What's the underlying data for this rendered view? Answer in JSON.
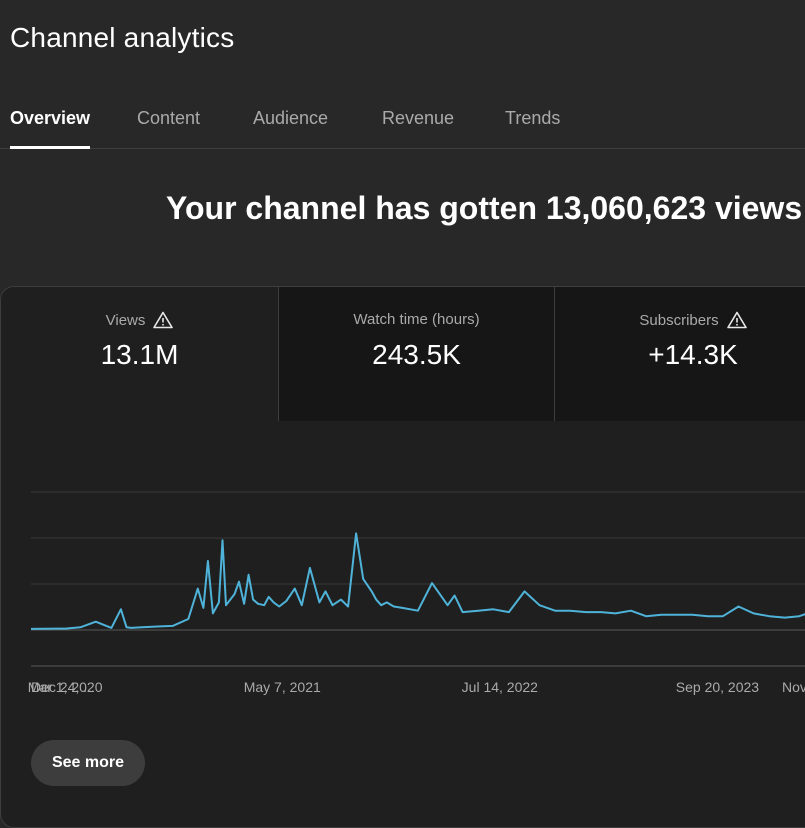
{
  "page": {
    "title": "Channel analytics"
  },
  "tabs": [
    {
      "label": "Overview",
      "active": true
    },
    {
      "label": "Content",
      "active": false
    },
    {
      "label": "Audience",
      "active": false
    },
    {
      "label": "Revenue",
      "active": false
    },
    {
      "label": "Trends",
      "active": false
    }
  ],
  "headline": "Your channel has gotten 13,060,623 views",
  "metrics": [
    {
      "label": "Views",
      "value": "13.1M",
      "icon": "warning-icon",
      "selected": true
    },
    {
      "label": "Watch time (hours)",
      "value": "243.5K",
      "icon": "",
      "selected": false
    },
    {
      "label": "Subscribers",
      "value": "+14.3K",
      "icon": "warning-icon",
      "selected": false
    }
  ],
  "actions": {
    "see_more": "See more"
  },
  "colors": {
    "line": "#4fb3d9",
    "background": "#282828",
    "card": "#1f1f1f"
  },
  "chart_data": {
    "type": "line",
    "series": [
      {
        "x": [
          "2019-12-24",
          "2020-01-20",
          "2020-02-15",
          "2020-03-01",
          "2020-04-01",
          "2020-05-01",
          "2020-06-01",
          "2020-06-20",
          "2020-07-01",
          "2020-07-10",
          "2020-08-01",
          "2020-09-01",
          "2020-10-01",
          "2020-11-01",
          "2020-11-20",
          "2020-12-01",
          "2020-12-10",
          "2020-12-20",
          "2021-01-01",
          "2021-01-08",
          "2021-01-15",
          "2021-02-01",
          "2021-02-10",
          "2021-02-20",
          "2021-03-01",
          "2021-03-10",
          "2021-03-20",
          "2021-04-01",
          "2021-04-10",
          "2021-04-20",
          "2021-05-01",
          "2021-05-15",
          "2021-06-01",
          "2021-06-15",
          "2021-07-01",
          "2021-07-20",
          "2021-08-01",
          "2021-08-15",
          "2021-09-01",
          "2021-09-15",
          "2021-10-01",
          "2021-10-15",
          "2021-11-01",
          "2021-11-10",
          "2021-11-20",
          "2021-12-01",
          "2021-12-15",
          "2022-01-01",
          "2022-02-01",
          "2022-03-01",
          "2022-04-01",
          "2022-04-15",
          "2022-05-01",
          "2022-06-01",
          "2022-07-01",
          "2022-08-01",
          "2022-09-01",
          "2022-10-01",
          "2022-11-01",
          "2022-12-01",
          "2023-01-01",
          "2023-02-01",
          "2023-03-01",
          "2023-04-01",
          "2023-05-01",
          "2023-06-01",
          "2023-07-01",
          "2023-08-01",
          "2023-09-01",
          "2023-10-01",
          "2023-11-01",
          "2023-12-01",
          "2024-01-01",
          "2024-02-01",
          "2024-03-01",
          "2024-04-01",
          "2024-05-01",
          "2024-06-01"
        ],
        "y": [
          0.8,
          0.9,
          1.0,
          1.0,
          2.0,
          6.0,
          1.5,
          15.0,
          2.0,
          1.5,
          2.0,
          2.5,
          3.0,
          8.0,
          30.0,
          16.0,
          50.0,
          12.0,
          20.0,
          65.0,
          18.0,
          26.0,
          35.0,
          19.0,
          40.0,
          22.0,
          19.0,
          18.0,
          24.0,
          20.0,
          17.0,
          21.0,
          30.0,
          18.0,
          45.0,
          20.0,
          28.0,
          18.0,
          22.0,
          17.0,
          70.0,
          37.0,
          28.0,
          22.0,
          18.0,
          20.0,
          17.0,
          16.0,
          14.0,
          34.0,
          18.0,
          25.0,
          13.0,
          14.0,
          15.0,
          13.0,
          28.0,
          18.0,
          14.0,
          14.0,
          13.0,
          13.0,
          12.0,
          14.0,
          10.0,
          11.0,
          11.0,
          11.0,
          10.0,
          10.0,
          17.0,
          12.0,
          10.0,
          9.0,
          10.0,
          14.0,
          10.0,
          9.0
        ]
      }
    ],
    "x_tick_labels": [
      "Dec 24, ...",
      "Mar 1, 2020",
      "May 7, 2021",
      "Jul 14, 2022",
      "Sep 20, 2023",
      "Nov"
    ],
    "x_tick_dates": [
      "2019-12-24",
      "2020-03-01",
      "2021-05-07",
      "2022-07-14",
      "2023-09-20",
      "2024-11-26"
    ],
    "x_range": [
      "2019-12-24",
      "2024-11-26"
    ],
    "ylim": [
      0,
      100
    ],
    "grid": true,
    "legend": "none"
  }
}
